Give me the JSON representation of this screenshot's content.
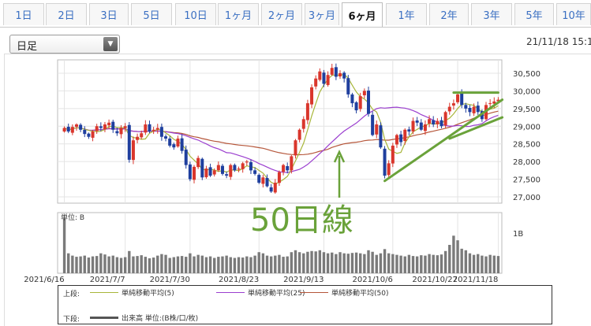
{
  "tabs": [
    "1日",
    "2日",
    "3日",
    "5日",
    "10日",
    "1ヶ月",
    "2ヶ月",
    "3ヶ月",
    "6ヶ月",
    "1年",
    "2年",
    "3年",
    "5年",
    "10年"
  ],
  "active_tab": "6ヶ月",
  "select": {
    "value": "日足"
  },
  "datetime": "21/11/18 15:1",
  "annotation": "50日線",
  "legend": {
    "upper_label": "上段:",
    "lower_label": "下段:",
    "ma5": "単純移動平均(5)",
    "ma25": "単純移動平均(25)",
    "ma50": "単純移動平均(50)",
    "volume": "出来高 単位:(B株/口/枚)"
  },
  "colors": {
    "up": "#d9362c",
    "down": "#1f3f9e",
    "ma5": "#a8b63a",
    "ma25": "#9b3fcf",
    "ma50": "#b5563a",
    "trend": "#6aa23a",
    "volume": "#7a7a7a"
  },
  "chart_data": {
    "type": "candlestick",
    "price_axis": {
      "ticks": [
        "30,500",
        "30,000",
        "29,500",
        "29,000",
        "28,500",
        "28,000",
        "27,500",
        "27,000"
      ],
      "ylim": [
        27000,
        30700
      ]
    },
    "volume_axis": {
      "unit_label": "単位: B",
      "tick_label": "1B"
    },
    "x_tick_labels": [
      "2021/6/16",
      "2021/7/7",
      "2021/7/30",
      "2021/8/23",
      "2021/9/13",
      "2021/10/6",
      "2021/10/27",
      "2021/11/18"
    ],
    "close": [
      28950,
      28850,
      28980,
      29050,
      28900,
      28780,
      28700,
      28850,
      29000,
      28950,
      29050,
      29100,
      28900,
      28800,
      28950,
      29000,
      28050,
      28600,
      28700,
      28800,
      29050,
      28850,
      28900,
      28950,
      28700,
      28650,
      28450,
      28400,
      28650,
      28300,
      27900,
      27500,
      27850,
      28100,
      27550,
      27800,
      27600,
      27750,
      27900,
      27650,
      27600,
      27900,
      27750,
      27800,
      27950,
      28000,
      27750,
      27650,
      27400,
      27550,
      27300,
      27150,
      27400,
      27700,
      27900,
      27750,
      28150,
      28600,
      28900,
      29200,
      29650,
      30100,
      30350,
      30550,
      30200,
      30450,
      30650,
      30400,
      30500,
      30350,
      29900,
      29650,
      29450,
      29850,
      30000,
      29350,
      28750,
      29050,
      28400,
      27600,
      27950,
      28450,
      28750,
      28550,
      28900,
      28850,
      29150,
      29100,
      28900,
      29050,
      29200,
      29050,
      29150,
      29000,
      29400,
      29550,
      29650,
      29900,
      29600,
      29500,
      29400,
      29550,
      29400,
      29200,
      29600,
      29650,
      29700,
      29750
    ],
    "volume": [
      1.42,
      0.52,
      0.46,
      0.43,
      0.44,
      0.46,
      0.41,
      0.44,
      0.45,
      0.52,
      0.49,
      0.44,
      0.46,
      0.42,
      0.4,
      0.42,
      0.58,
      0.44,
      0.45,
      0.47,
      0.43,
      0.39,
      0.41,
      0.46,
      0.5,
      0.48,
      0.4,
      0.42,
      0.44,
      0.45,
      0.43,
      0.52,
      0.44,
      0.48,
      0.46,
      0.42,
      0.44,
      0.4,
      0.43,
      0.44,
      0.46,
      0.42,
      0.4,
      0.42,
      0.41,
      0.44,
      0.42,
      0.46,
      0.55,
      0.52,
      0.46,
      0.44,
      0.46,
      0.48,
      0.43,
      0.44,
      0.55,
      0.6,
      0.55,
      0.52,
      0.56,
      0.58,
      0.57,
      0.6,
      0.55,
      0.52,
      0.54,
      0.5,
      0.55,
      0.52,
      0.51,
      0.53,
      0.54,
      0.52,
      0.5,
      0.6,
      0.56,
      0.48,
      0.52,
      0.63,
      0.52,
      0.5,
      0.48,
      0.46,
      0.44,
      0.48,
      0.45,
      0.44,
      0.47,
      0.46,
      0.5,
      0.48,
      0.47,
      0.49,
      0.58,
      0.74,
      0.98,
      0.86,
      0.64,
      0.6,
      0.52,
      0.48,
      0.5,
      0.46,
      0.44,
      0.48,
      0.46,
      0.45
    ],
    "trendlines": [
      {
        "from": [
          79,
          27450
        ],
        "to": [
          108,
          29750
        ]
      },
      {
        "from": [
          95,
          28650
        ],
        "to": [
          108,
          29250
        ]
      },
      {
        "from": [
          96,
          29950
        ],
        "to": [
          107,
          29950
        ]
      }
    ]
  }
}
